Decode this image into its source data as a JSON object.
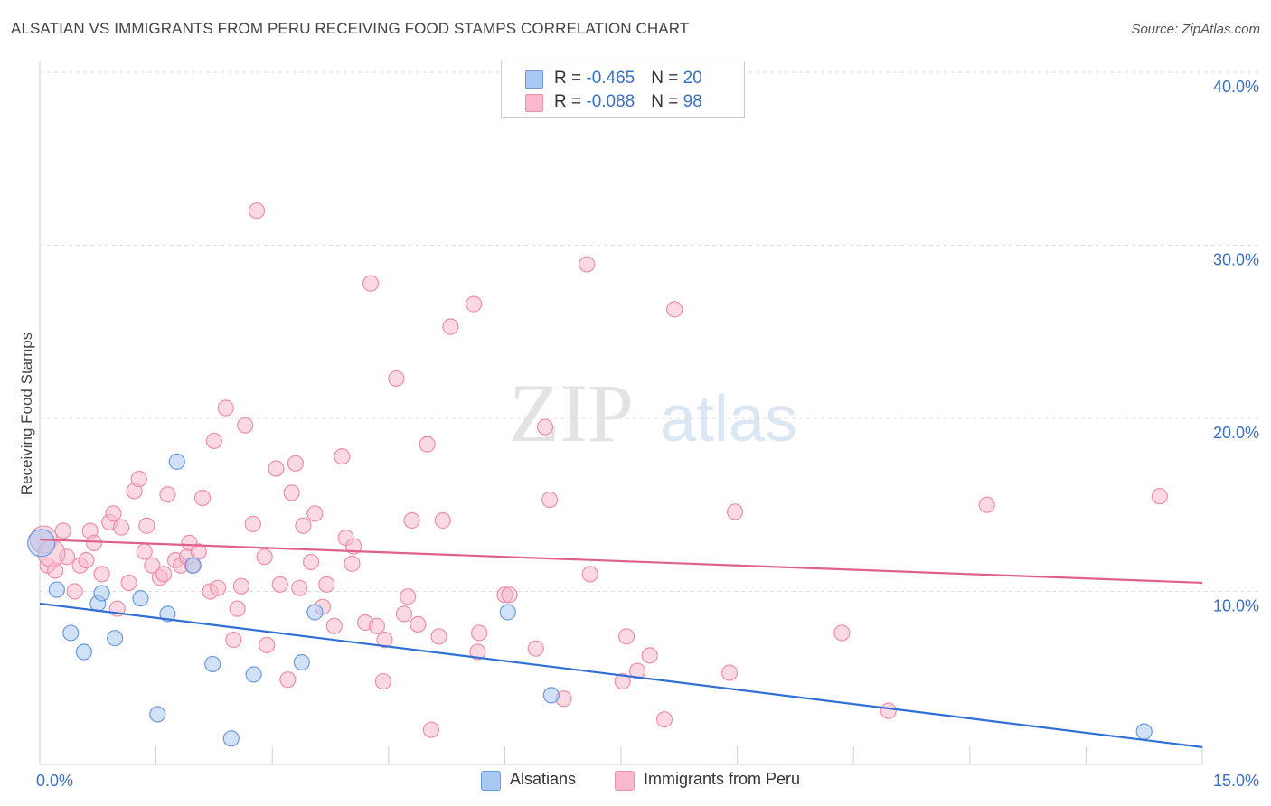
{
  "header": {
    "title": "ALSATIAN VS IMMIGRANTS FROM PERU RECEIVING FOOD STAMPS CORRELATION CHART",
    "source": "Source: ZipAtlas.com"
  },
  "watermark": {
    "zip": "ZIP",
    "atlas": "atlas"
  },
  "legend_top": [
    {
      "r_label": "R = ",
      "r_value": "-0.465",
      "n_label": "N = ",
      "n_value": "20",
      "color": "#a9c9f2"
    },
    {
      "r_label": "R = ",
      "r_value": "-0.088",
      "n_label": "N = ",
      "n_value": "98",
      "color": "#f7b9cb"
    }
  ],
  "legend_bottom": [
    {
      "label": "Alsatians",
      "color": "#a9c9f2"
    },
    {
      "label": "Immigrants from Peru",
      "color": "#f7b9cb"
    }
  ],
  "chart_data": {
    "type": "scatter",
    "title": "ALSATIAN VS IMMIGRANTS FROM PERU RECEIVING FOOD STAMPS CORRELATION CHART",
    "xlabel": "",
    "ylabel": "Receiving Food Stamps",
    "xlim": [
      0,
      15
    ],
    "ylim": [
      0,
      40
    ],
    "x_ticks": [
      0,
      15
    ],
    "x_tick_labels": [
      "0.0%",
      "15.0%"
    ],
    "y_ticks": [
      10,
      20,
      30,
      40
    ],
    "y_tick_labels": [
      "10.0%",
      "20.0%",
      "30.0%",
      "40.0%"
    ],
    "grid": true,
    "series": [
      {
        "name": "Alsatians",
        "color": "#a9c9f2",
        "stroke": "#6a9be0",
        "line_color": "#2f6fd6",
        "trend": [
          [
            0,
            9.3
          ],
          [
            15,
            1.0
          ]
        ],
        "points": [
          [
            0.02,
            12.8
          ],
          [
            0.22,
            10.1
          ],
          [
            0.4,
            7.6
          ],
          [
            0.57,
            6.5
          ],
          [
            0.75,
            9.3
          ],
          [
            0.8,
            9.9
          ],
          [
            0.97,
            7.3
          ],
          [
            1.3,
            9.6
          ],
          [
            1.52,
            2.9
          ],
          [
            1.65,
            8.7
          ],
          [
            1.77,
            17.5
          ],
          [
            1.98,
            11.5
          ],
          [
            2.23,
            5.8
          ],
          [
            2.47,
            1.5
          ],
          [
            2.76,
            5.2
          ],
          [
            3.38,
            5.9
          ],
          [
            3.55,
            8.8
          ],
          [
            6.04,
            8.8
          ],
          [
            6.6,
            4.0
          ],
          [
            14.25,
            1.9
          ]
        ]
      },
      {
        "name": "Immigrants from Peru",
        "color": "#f7b9cb",
        "stroke": "#ee8fab",
        "line_color": "#e0608a",
        "trend": [
          [
            0,
            13.0
          ],
          [
            15,
            10.5
          ]
        ],
        "points": [
          [
            0.05,
            13.0
          ],
          [
            0.1,
            11.5
          ],
          [
            0.2,
            11.2
          ],
          [
            0.3,
            13.5
          ],
          [
            0.35,
            12.0
          ],
          [
            0.45,
            10.0
          ],
          [
            0.52,
            11.5
          ],
          [
            0.6,
            11.8
          ],
          [
            0.65,
            13.5
          ],
          [
            0.7,
            12.8
          ],
          [
            0.8,
            11.0
          ],
          [
            0.9,
            14.0
          ],
          [
            0.95,
            14.5
          ],
          [
            1.0,
            9.0
          ],
          [
            1.05,
            13.7
          ],
          [
            1.15,
            10.5
          ],
          [
            1.22,
            15.8
          ],
          [
            1.28,
            16.5
          ],
          [
            1.35,
            12.3
          ],
          [
            1.38,
            13.8
          ],
          [
            1.45,
            11.5
          ],
          [
            1.55,
            10.8
          ],
          [
            1.6,
            11.0
          ],
          [
            1.65,
            15.6
          ],
          [
            1.75,
            11.8
          ],
          [
            1.82,
            11.5
          ],
          [
            1.9,
            12.0
          ],
          [
            1.93,
            12.8
          ],
          [
            1.97,
            11.5
          ],
          [
            2.05,
            12.3
          ],
          [
            2.1,
            15.4
          ],
          [
            2.2,
            10.0
          ],
          [
            2.25,
            18.7
          ],
          [
            2.3,
            10.2
          ],
          [
            2.4,
            20.6
          ],
          [
            2.5,
            7.2
          ],
          [
            2.55,
            9.0
          ],
          [
            2.6,
            10.3
          ],
          [
            2.65,
            19.6
          ],
          [
            2.75,
            13.9
          ],
          [
            2.8,
            32.0
          ],
          [
            2.9,
            12.0
          ],
          [
            2.93,
            6.9
          ],
          [
            3.05,
            17.1
          ],
          [
            3.1,
            10.4
          ],
          [
            3.2,
            4.9
          ],
          [
            3.25,
            15.7
          ],
          [
            3.3,
            17.4
          ],
          [
            3.35,
            10.2
          ],
          [
            3.4,
            13.8
          ],
          [
            3.5,
            11.7
          ],
          [
            3.55,
            14.5
          ],
          [
            3.65,
            9.1
          ],
          [
            3.7,
            10.4
          ],
          [
            3.8,
            8.0
          ],
          [
            3.9,
            17.8
          ],
          [
            3.95,
            13.1
          ],
          [
            4.03,
            11.6
          ],
          [
            4.05,
            12.6
          ],
          [
            4.2,
            8.2
          ],
          [
            4.27,
            27.8
          ],
          [
            4.35,
            8.0
          ],
          [
            4.43,
            4.8
          ],
          [
            4.45,
            7.2
          ],
          [
            4.6,
            22.3
          ],
          [
            4.7,
            8.7
          ],
          [
            4.75,
            9.7
          ],
          [
            4.8,
            14.1
          ],
          [
            4.88,
            8.1
          ],
          [
            5.0,
            18.5
          ],
          [
            5.05,
            2.0
          ],
          [
            5.15,
            7.4
          ],
          [
            5.2,
            14.1
          ],
          [
            5.3,
            25.3
          ],
          [
            5.6,
            26.6
          ],
          [
            5.65,
            6.5
          ],
          [
            5.67,
            7.6
          ],
          [
            6.0,
            9.8
          ],
          [
            6.06,
            9.8
          ],
          [
            6.4,
            6.7
          ],
          [
            6.52,
            19.5
          ],
          [
            6.58,
            15.3
          ],
          [
            6.76,
            3.8
          ],
          [
            7.06,
            28.9
          ],
          [
            7.1,
            11.0
          ],
          [
            7.52,
            4.8
          ],
          [
            7.57,
            7.4
          ],
          [
            7.71,
            5.4
          ],
          [
            7.87,
            6.3
          ],
          [
            8.06,
            2.6
          ],
          [
            8.19,
            26.3
          ],
          [
            8.9,
            5.3
          ],
          [
            8.97,
            14.6
          ],
          [
            10.35,
            7.6
          ],
          [
            10.95,
            3.1
          ],
          [
            12.22,
            15.0
          ],
          [
            14.45,
            15.5
          ],
          [
            0.15,
            12.2
          ]
        ]
      }
    ]
  }
}
